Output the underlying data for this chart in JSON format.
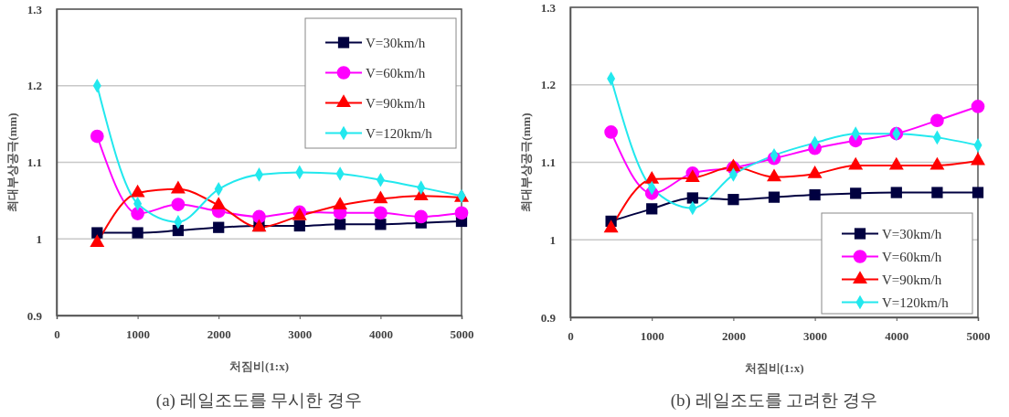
{
  "chart_data": [
    {
      "type": "line",
      "title": "(a)  레일조도를 무시한 경우",
      "xlabel": "처짐비(1:x)",
      "ylabel": "최대부상공극(mm)",
      "x": [
        500,
        1000,
        1500,
        2000,
        2500,
        3000,
        3500,
        4000,
        4500,
        5000
      ],
      "xlim": [
        0,
        5000
      ],
      "xticks": [
        0,
        1000,
        2000,
        3000,
        4000,
        5000
      ],
      "ylim": [
        0.9,
        1.3
      ],
      "yticks": [
        0.9,
        1,
        1.1,
        1.2,
        1.3
      ],
      "grid": "y",
      "legend": "top right",
      "series": [
        {
          "name": "V=30km/h",
          "color": "#000040",
          "marker": "square",
          "values": [
            1.008,
            1.008,
            1.011,
            1.015,
            1.017,
            1.017,
            1.019,
            1.019,
            1.021,
            1.023
          ]
        },
        {
          "name": "V=60km/h",
          "color": "#ff00ff",
          "marker": "circle",
          "values": [
            1.134,
            1.033,
            1.045,
            1.036,
            1.029,
            1.035,
            1.034,
            1.034,
            1.029,
            1.034
          ]
        },
        {
          "name": "V=90km/h",
          "color": "#ff0000",
          "marker": "triangle",
          "values": [
            0.995,
            1.06,
            1.065,
            1.044,
            1.015,
            1.03,
            1.044,
            1.052,
            1.056,
            1.054
          ]
        },
        {
          "name": "V=120km/h",
          "color": "#22e8ee",
          "marker": "diamond",
          "values": [
            1.2,
            1.046,
            1.022,
            1.065,
            1.084,
            1.087,
            1.085,
            1.077,
            1.067,
            1.056
          ]
        }
      ]
    },
    {
      "type": "line",
      "title": "(b)  레일조도를 고려한 경우",
      "xlabel": "처짐비(1:x)",
      "ylabel": "최대부상공극(mm)",
      "x": [
        500,
        1000,
        1500,
        2000,
        2500,
        3000,
        3500,
        4000,
        4500,
        5000
      ],
      "xlim": [
        0,
        5000
      ],
      "xticks": [
        0,
        1000,
        2000,
        3000,
        4000,
        5000
      ],
      "ylim": [
        0.9,
        1.3
      ],
      "yticks": [
        0.9,
        1,
        1.1,
        1.2,
        1.3
      ],
      "grid": "y",
      "legend": "bottom right",
      "series": [
        {
          "name": "V=30km/h",
          "color": "#000040",
          "marker": "square",
          "values": [
            1.024,
            1.04,
            1.054,
            1.052,
            1.055,
            1.058,
            1.06,
            1.061,
            1.061,
            1.061
          ]
        },
        {
          "name": "V=60km/h",
          "color": "#ff00ff",
          "marker": "circle",
          "values": [
            1.139,
            1.06,
            1.086,
            1.093,
            1.105,
            1.118,
            1.128,
            1.137,
            1.154,
            1.172
          ]
        },
        {
          "name": "V=90km/h",
          "color": "#ff0000",
          "marker": "triangle",
          "values": [
            1.015,
            1.078,
            1.08,
            1.094,
            1.081,
            1.085,
            1.096,
            1.096,
            1.096,
            1.102
          ]
        },
        {
          "name": "V=120km/h",
          "color": "#22e8ee",
          "marker": "diamond",
          "values": [
            1.208,
            1.067,
            1.041,
            1.084,
            1.109,
            1.125,
            1.137,
            1.137,
            1.132,
            1.122
          ]
        }
      ]
    }
  ]
}
